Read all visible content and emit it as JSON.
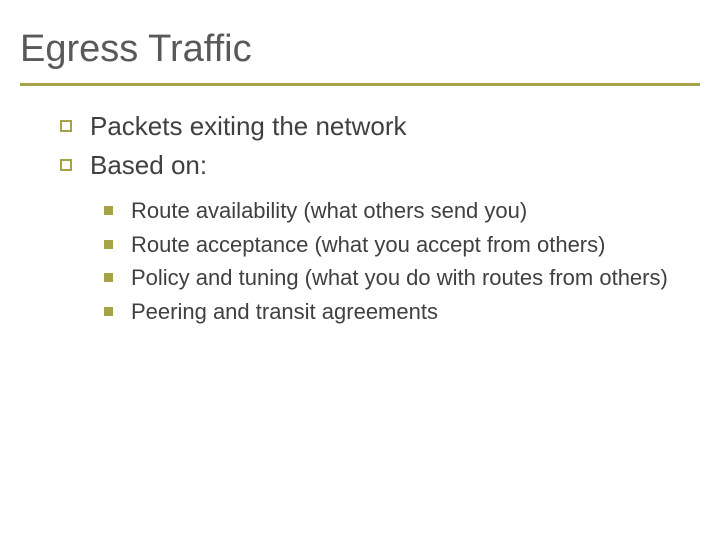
{
  "colors": {
    "accent": "#a6a248",
    "title_text": "#595959",
    "body_text": "#404040",
    "background": "#ffffff"
  },
  "typography": {
    "title_fontsize": 38,
    "level1_fontsize": 26,
    "level2_fontsize": 22,
    "font_family": "Verdana"
  },
  "title": "Egress Traffic",
  "level1": [
    {
      "text": "Packets exiting the network"
    },
    {
      "text": "Based on:"
    }
  ],
  "level2": [
    {
      "text": "Route availability (what others send you)"
    },
    {
      "text": "Route acceptance (what you accept from others)"
    },
    {
      "text": "Policy and tuning (what you do with routes from others)"
    },
    {
      "text": "Peering and transit agreements"
    }
  ]
}
